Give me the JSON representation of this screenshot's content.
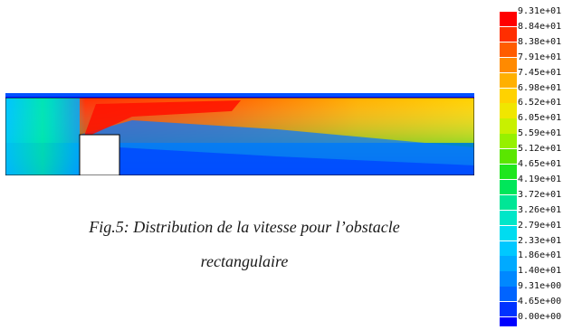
{
  "caption": {
    "line1": "Fig.5: Distribution de la vitesse pour l’obstacle",
    "line2": "rectangulaire"
  },
  "legend": {
    "labels": [
      "9.31e+01",
      "8.84e+01",
      "8.38e+01",
      "7.91e+01",
      "7.45e+01",
      "6.98e+01",
      "6.52e+01",
      "6.05e+01",
      "5.59e+01",
      "5.12e+01",
      "4.65e+01",
      "4.19e+01",
      "3.72e+01",
      "3.26e+01",
      "2.79e+01",
      "2.33e+01",
      "1.86e+01",
      "1.40e+01",
      "9.31e+00",
      "4.65e+00",
      "0.00e+00"
    ],
    "colors": [
      "#ff0000",
      "#ff2e00",
      "#ff5c00",
      "#ff8a00",
      "#ffb000",
      "#ffd200",
      "#f0e600",
      "#c8f000",
      "#96f000",
      "#5ae600",
      "#1ee61e",
      "#00e65a",
      "#00e696",
      "#00e6c8",
      "#00dcf0",
      "#00c8ff",
      "#00aaff",
      "#0088ff",
      "#0064ff",
      "#0032ff",
      "#0000ff"
    ]
  }
}
